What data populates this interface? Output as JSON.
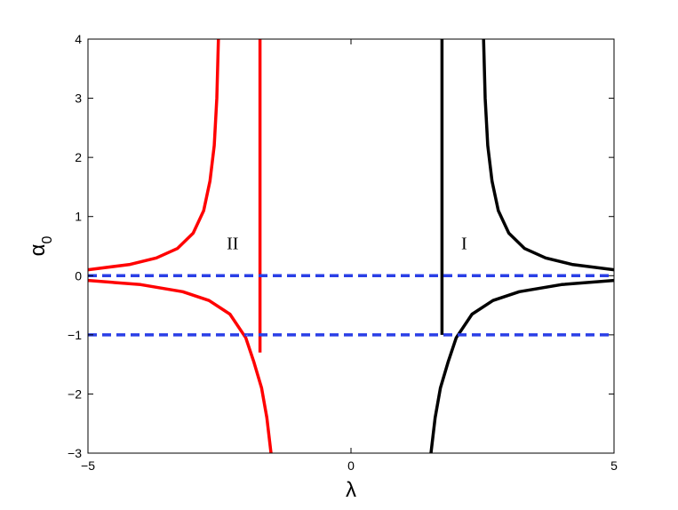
{
  "chart_data": {
    "type": "line",
    "xlabel": "λ",
    "ylabel_main": "α",
    "ylabel_sub": "0",
    "xlim": [
      -5,
      5
    ],
    "ylim": [
      -3,
      4
    ],
    "grid": false,
    "x_ticks": [
      -5,
      0,
      5
    ],
    "y_ticks": [
      -3,
      -2,
      -1,
      0,
      1,
      2,
      3,
      4
    ],
    "x_tick_labels": [
      "−5",
      "0",
      "5"
    ],
    "y_tick_labels": [
      "−3",
      "−2",
      "−1",
      "0",
      "1",
      "2",
      "3",
      "4"
    ],
    "annotations": [
      {
        "text": "II",
        "x": -2.25,
        "y": 0.45
      },
      {
        "text": "I",
        "x": 2.15,
        "y": 0.45
      }
    ],
    "series": [
      {
        "color": "#000000",
        "width": 3.5,
        "style": "solid",
        "points": [
          [
            1.52,
            -3.0
          ],
          [
            1.6,
            -2.4
          ],
          [
            1.7,
            -1.9
          ],
          [
            1.85,
            -1.45
          ],
          [
            2.0,
            -1.05
          ],
          [
            2.3,
            -0.65
          ],
          [
            2.7,
            -0.42
          ],
          [
            3.2,
            -0.27
          ],
          [
            4.0,
            -0.15
          ],
          [
            5.0,
            -0.08
          ]
        ]
      },
      {
        "color": "#000000",
        "width": 3.5,
        "style": "solid",
        "points": [
          [
            2.52,
            4.0
          ],
          [
            2.55,
            3.0
          ],
          [
            2.6,
            2.2
          ],
          [
            2.68,
            1.6
          ],
          [
            2.8,
            1.1
          ],
          [
            3.0,
            0.72
          ],
          [
            3.3,
            0.46
          ],
          [
            3.7,
            0.3
          ],
          [
            4.2,
            0.19
          ],
          [
            5.0,
            0.1
          ]
        ]
      },
      {
        "color": "#000000",
        "width": 3.5,
        "style": "solid",
        "points": [
          [
            1.73,
            -1.0
          ],
          [
            1.73,
            4.0
          ]
        ]
      },
      {
        "color": "#ff0000",
        "width": 3.5,
        "style": "solid",
        "points": [
          [
            -1.52,
            -3.0
          ],
          [
            -1.6,
            -2.4
          ],
          [
            -1.7,
            -1.9
          ],
          [
            -1.85,
            -1.45
          ],
          [
            -2.0,
            -1.05
          ],
          [
            -2.3,
            -0.65
          ],
          [
            -2.7,
            -0.42
          ],
          [
            -3.2,
            -0.27
          ],
          [
            -4.0,
            -0.15
          ],
          [
            -5.0,
            -0.08
          ]
        ]
      },
      {
        "color": "#ff0000",
        "width": 3.5,
        "style": "solid",
        "points": [
          [
            -2.52,
            4.0
          ],
          [
            -2.55,
            3.0
          ],
          [
            -2.6,
            2.2
          ],
          [
            -2.68,
            1.6
          ],
          [
            -2.8,
            1.1
          ],
          [
            -3.0,
            0.72
          ],
          [
            -3.3,
            0.46
          ],
          [
            -3.7,
            0.3
          ],
          [
            -4.2,
            0.19
          ],
          [
            -5.0,
            0.1
          ]
        ]
      },
      {
        "color": "#ff0000",
        "width": 3.5,
        "style": "solid",
        "points": [
          [
            -1.73,
            -1.3
          ],
          [
            -1.73,
            4.0
          ]
        ]
      },
      {
        "color": "#2a3fe6",
        "width": 3.5,
        "style": "dashed",
        "points": [
          [
            -5.0,
            0.0
          ],
          [
            5.0,
            0.0
          ]
        ]
      },
      {
        "color": "#2a3fe6",
        "width": 3.5,
        "style": "dashed",
        "points": [
          [
            -5.0,
            -1.0
          ],
          [
            5.0,
            -1.0
          ]
        ]
      },
      {
        "color": "#ffffff",
        "width": 1.2,
        "style": "dotted",
        "points": [
          [
            1.78,
            -1.45
          ],
          [
            1.88,
            -1.18
          ],
          [
            1.98,
            -1.0
          ]
        ]
      },
      {
        "color": "#ffffff",
        "width": 1.2,
        "style": "dotted",
        "points": [
          [
            -1.78,
            -1.45
          ],
          [
            -1.88,
            -1.18
          ],
          [
            -1.98,
            -1.0
          ]
        ]
      }
    ]
  }
}
